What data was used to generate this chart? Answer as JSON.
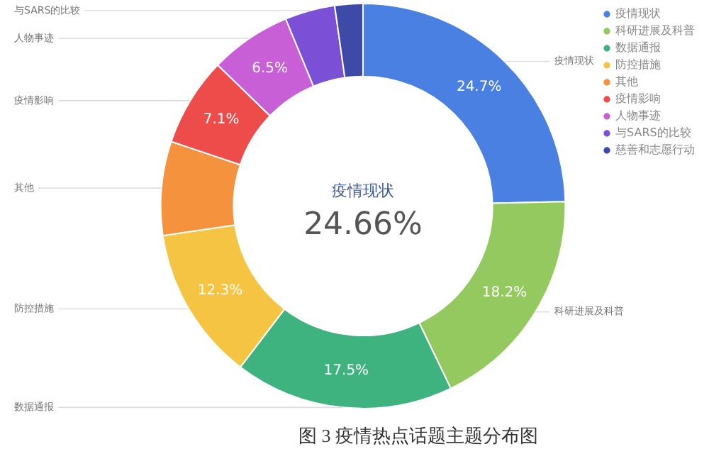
{
  "chart_data": {
    "type": "donut",
    "title": "图 3 疫情热点话题主题分布图",
    "categories": [
      "疫情现状",
      "科研进展及科普",
      "数据通报",
      "防控措施",
      "其他",
      "疫情影响",
      "人物事迹",
      "与SARS的比较",
      "慈善和志愿行动"
    ],
    "values": [
      24.66,
      18.2,
      17.5,
      12.3,
      7.5,
      7.1,
      6.5,
      4.0,
      2.24
    ],
    "value_labels": [
      "24.7%",
      "18.2%",
      "17.5%",
      "12.3%",
      null,
      "7.1%",
      "6.5%",
      null,
      null
    ],
    "colors": [
      "#4a80e2",
      "#93c95e",
      "#3fb37f",
      "#f5c443",
      "#f5923e",
      "#ee4b4b",
      "#c95fd6",
      "#7b4fd6",
      "#3d4aa8"
    ],
    "annotations": [
      "疫情现状",
      "24.66%"
    ],
    "legend": "top right"
  }
}
